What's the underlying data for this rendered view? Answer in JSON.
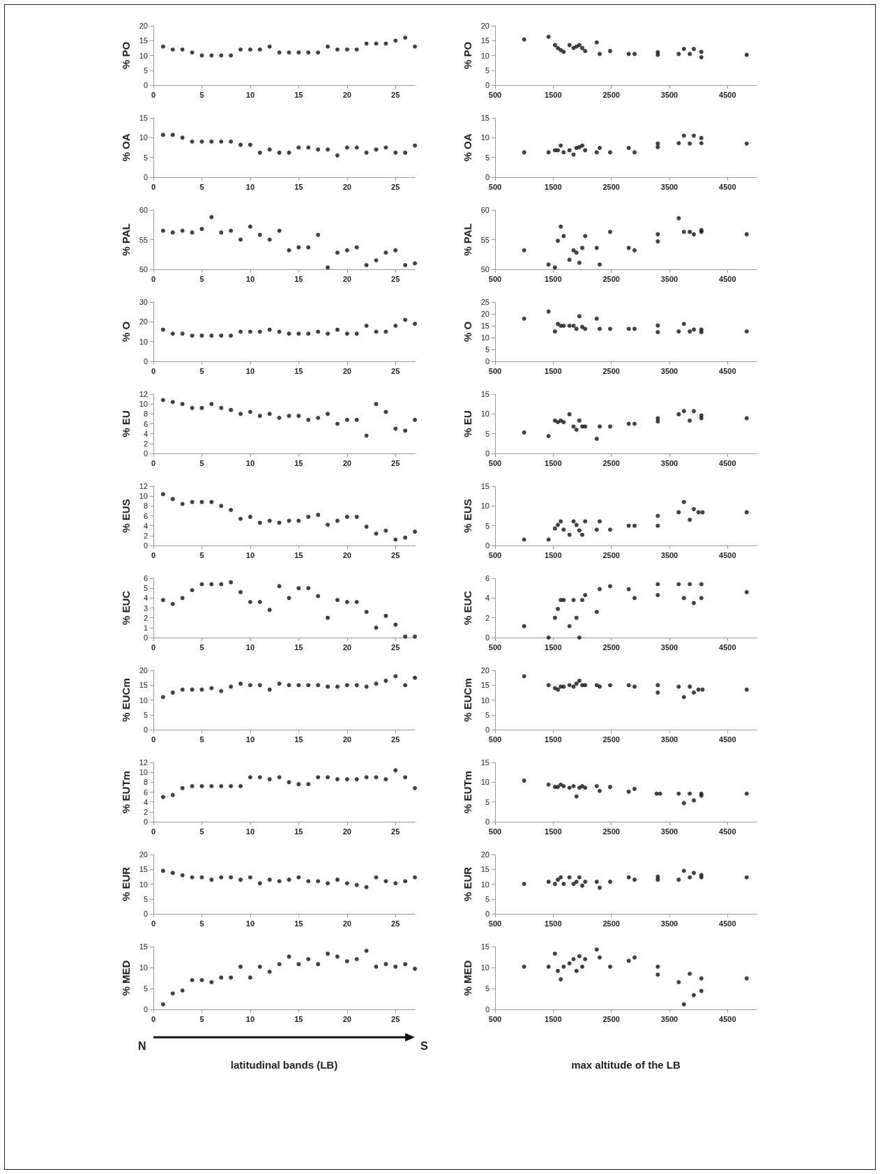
{
  "chart_data": [
    {
      "type": "scatter",
      "ylabel": "% PO",
      "x": [
        1,
        2,
        3,
        4,
        5,
        6,
        7,
        8,
        9,
        10,
        11,
        12,
        13,
        14,
        15,
        16,
        17,
        18,
        19,
        20,
        21,
        22,
        23,
        24,
        25,
        26,
        27
      ],
      "values": [
        13,
        12,
        12,
        11,
        10,
        10,
        10,
        10,
        12,
        12,
        12,
        13,
        11,
        11,
        11,
        11,
        11,
        13,
        12,
        12,
        12,
        14,
        14,
        14,
        15,
        16,
        13
      ],
      "color": "#111111",
      "marker": "circle",
      "xlim": [
        0,
        27
      ],
      "xticks": [
        0,
        5,
        10,
        15,
        20,
        25
      ],
      "ylim": [
        0,
        20
      ],
      "yticks": [
        0,
        5,
        10,
        15,
        20
      ]
    },
    {
      "type": "scatter",
      "ylabel": "% PO",
      "x": [
        1000,
        1420,
        1530,
        1580,
        1630,
        1680,
        1780,
        1850,
        1900,
        1950,
        2000,
        2050,
        2250,
        2300,
        2480,
        2800,
        2900,
        3300,
        3300,
        3660,
        3750,
        3850,
        3920,
        4050,
        4050,
        4830
      ],
      "values": [
        15.4,
        16.3,
        13.5,
        12.5,
        11.8,
        11.2,
        13.5,
        12.5,
        13,
        13.5,
        12.5,
        11.5,
        14.4,
        10.5,
        11.5,
        10.5,
        10.5,
        11.1,
        10.2,
        10.5,
        12.2,
        10.5,
        12.2,
        11.2,
        9.4,
        10.2
      ],
      "color": "#111111",
      "marker": "circle",
      "xlim": [
        500,
        5000
      ],
      "xticks": [
        500,
        1500,
        2500,
        3500,
        4500
      ],
      "ylim": [
        0,
        20
      ],
      "yticks": [
        0,
        5,
        10,
        15,
        20
      ]
    },
    {
      "type": "scatter",
      "ylabel": "% OA",
      "x": [
        1,
        2,
        3,
        4,
        5,
        6,
        7,
        8,
        9,
        10,
        11,
        12,
        13,
        14,
        15,
        16,
        17,
        18,
        19,
        20,
        21,
        22,
        23,
        24,
        25,
        26,
        27
      ],
      "values": [
        10.7,
        10.7,
        10,
        9,
        9,
        9,
        9,
        9,
        8.2,
        8.2,
        6.2,
        7,
        6.2,
        6.2,
        7.5,
        7.5,
        7,
        7,
        5.5,
        7.5,
        7.5,
        6.2,
        7,
        7.5,
        6.2,
        6.2,
        8
      ],
      "color": "#111111",
      "marker": "circle",
      "xlim": [
        0,
        27
      ],
      "xticks": [
        0,
        5,
        10,
        15,
        20,
        25
      ],
      "ylim": [
        0,
        15
      ],
      "yticks": [
        0,
        5,
        10,
        15
      ]
    },
    {
      "type": "scatter",
      "ylabel": "% OA",
      "x": [
        1000,
        1420,
        1530,
        1580,
        1630,
        1680,
        1780,
        1850,
        1900,
        1950,
        2000,
        2050,
        2250,
        2300,
        2480,
        2800,
        2900,
        3300,
        3300,
        3660,
        3750,
        3850,
        3920,
        4050,
        4050,
        4830
      ],
      "values": [
        6.3,
        6.3,
        6.8,
        6.8,
        8,
        6.3,
        6.8,
        5.7,
        7.4,
        7.6,
        8,
        6.8,
        6.3,
        7.4,
        6.3,
        7.4,
        6.3,
        8.5,
        7.6,
        8.6,
        10.5,
        8.5,
        10.5,
        9.9,
        8.6,
        8.5
      ],
      "color": "#111111",
      "marker": "circle",
      "xlim": [
        500,
        5000
      ],
      "xticks": [
        500,
        1500,
        2500,
        3500,
        4500
      ],
      "ylim": [
        0,
        15
      ],
      "yticks": [
        0,
        5,
        10,
        15
      ]
    },
    {
      "type": "scatter",
      "ylabel": "% PAL",
      "x": [
        1,
        2,
        3,
        4,
        5,
        6,
        7,
        8,
        9,
        10,
        11,
        12,
        13,
        14,
        15,
        16,
        17,
        18,
        19,
        20,
        21,
        22,
        23,
        24,
        25,
        26,
        27
      ],
      "values": [
        56.5,
        56.2,
        56.5,
        56.2,
        56.8,
        58.8,
        56.2,
        56.5,
        55,
        57.2,
        55.8,
        55,
        56.5,
        53.2,
        53.7,
        53.7,
        55.8,
        50.3,
        52.8,
        53.2,
        53.7,
        50.7,
        51.5,
        52.8,
        53.2,
        50.7,
        51
      ],
      "color": "#111111",
      "marker": "circle",
      "xlim": [
        0,
        27
      ],
      "xticks": [
        0,
        5,
        10,
        15,
        20,
        25
      ],
      "ylim": [
        50,
        60
      ],
      "yticks": [
        50,
        55,
        60
      ]
    },
    {
      "type": "scatter",
      "ylabel": "% PAL",
      "x": [
        1000,
        1420,
        1530,
        1580,
        1630,
        1680,
        1780,
        1850,
        1900,
        1950,
        2000,
        2050,
        2250,
        2300,
        2480,
        2800,
        2900,
        3300,
        3300,
        3660,
        3750,
        3850,
        3920,
        4050,
        4050,
        4830
      ],
      "values": [
        53.2,
        50.8,
        50.3,
        54.8,
        57.2,
        55.6,
        51.6,
        53.2,
        52.8,
        51.1,
        53.6,
        55.6,
        53.6,
        50.8,
        56.3,
        53.6,
        53.2,
        55.9,
        54.7,
        58.6,
        56.3,
        56.3,
        55.9,
        56.6,
        56.3,
        55.9
      ],
      "color": "#111111",
      "marker": "circle",
      "xlim": [
        500,
        5000
      ],
      "xticks": [
        500,
        1500,
        2500,
        3500,
        4500
      ],
      "ylim": [
        50,
        60
      ],
      "yticks": [
        50,
        55,
        60
      ]
    },
    {
      "type": "scatter",
      "ylabel": "% O",
      "x": [
        1,
        2,
        3,
        4,
        5,
        6,
        7,
        8,
        9,
        10,
        11,
        12,
        13,
        14,
        15,
        16,
        17,
        18,
        19,
        20,
        21,
        22,
        23,
        24,
        25,
        26,
        27
      ],
      "values": [
        16,
        14,
        14,
        13,
        13,
        13,
        13,
        13,
        15,
        15,
        15,
        16,
        15,
        14,
        14,
        14,
        15,
        14,
        16,
        14,
        14,
        18,
        15,
        15,
        18,
        21,
        19
      ],
      "color": "#111111",
      "marker": "circle",
      "xlim": [
        0,
        27
      ],
      "xticks": [
        0,
        5,
        10,
        15,
        20,
        25
      ],
      "ylim": [
        0,
        30
      ],
      "yticks": [
        0,
        10,
        20,
        30
      ]
    },
    {
      "type": "scatter",
      "ylabel": "% O",
      "x": [
        1000,
        1420,
        1530,
        1580,
        1630,
        1680,
        1780,
        1850,
        1900,
        1950,
        2000,
        2050,
        2250,
        2300,
        2480,
        2800,
        2900,
        3300,
        3300,
        3660,
        3750,
        3850,
        3920,
        4050,
        4050,
        4830
      ],
      "values": [
        18,
        21,
        12.6,
        15.8,
        15,
        15,
        15,
        15,
        13.7,
        19,
        14.5,
        13.7,
        18,
        13.7,
        13.7,
        13.7,
        13.7,
        15.1,
        12.3,
        12.6,
        15.8,
        12.6,
        13.4,
        13.4,
        12.3,
        12.6
      ],
      "color": "#111111",
      "marker": "circle",
      "xlim": [
        500,
        5000
      ],
      "xticks": [
        500,
        1500,
        2500,
        3500,
        4500
      ],
      "ylim": [
        0,
        25
      ],
      "yticks": [
        0,
        5,
        10,
        15,
        20,
        25
      ]
    },
    {
      "type": "scatter",
      "ylabel": "% EU",
      "x": [
        1,
        2,
        3,
        4,
        5,
        6,
        7,
        8,
        9,
        10,
        11,
        12,
        13,
        14,
        15,
        16,
        17,
        18,
        19,
        20,
        21,
        22,
        23,
        24,
        25,
        26,
        27
      ],
      "values": [
        10.8,
        10.4,
        10,
        9.2,
        9.2,
        10,
        9.2,
        8.8,
        8,
        8.4,
        7.6,
        8,
        7.2,
        7.6,
        7.6,
        6.8,
        7.2,
        8,
        6,
        6.8,
        6.8,
        3.6,
        10,
        8.4,
        5,
        4.6,
        6.8
      ],
      "color": "#111111",
      "marker": "circle",
      "xlim": [
        0,
        27
      ],
      "xticks": [
        0,
        5,
        10,
        15,
        20,
        25
      ],
      "ylim": [
        0,
        12
      ],
      "yticks": [
        0,
        2,
        4,
        6,
        8,
        10,
        12
      ]
    },
    {
      "type": "scatter",
      "ylabel": "% EU",
      "x": [
        1000,
        1420,
        1530,
        1580,
        1630,
        1680,
        1780,
        1850,
        1900,
        1950,
        2000,
        2050,
        2250,
        2300,
        2480,
        2800,
        2900,
        3300,
        3300,
        3660,
        3750,
        3850,
        3920,
        4050,
        4050,
        4830
      ],
      "values": [
        5.3,
        4.4,
        8.3,
        7.9,
        8.3,
        7.9,
        9.9,
        6.8,
        6,
        8.3,
        6.8,
        6.8,
        3.7,
        6.8,
        6.8,
        7.5,
        7.5,
        8.9,
        8.1,
        9.9,
        10.7,
        8.3,
        10.7,
        9.6,
        8.9,
        8.9
      ],
      "color": "#111111",
      "marker": "circle",
      "xlim": [
        500,
        5000
      ],
      "xticks": [
        500,
        1500,
        2500,
        3500,
        4500
      ],
      "ylim": [
        0,
        15
      ],
      "yticks": [
        0,
        5,
        10,
        15
      ]
    },
    {
      "type": "scatter",
      "ylabel": "% EUS",
      "x": [
        1,
        2,
        3,
        4,
        5,
        6,
        7,
        8,
        9,
        10,
        11,
        12,
        13,
        14,
        15,
        16,
        17,
        18,
        19,
        20,
        21,
        22,
        23,
        24,
        25,
        26,
        27
      ],
      "values": [
        10.4,
        9.4,
        8.4,
        8.8,
        8.8,
        8.8,
        8,
        7.2,
        5.4,
        5.8,
        4.6,
        5,
        4.6,
        5,
        5,
        5.8,
        6.2,
        4.2,
        5,
        5.8,
        5.8,
        3.8,
        2.4,
        3,
        1.2,
        1.6,
        2.8
      ],
      "color": "#111111",
      "marker": "circle",
      "xlim": [
        0,
        27
      ],
      "xticks": [
        0,
        5,
        10,
        15,
        20,
        25
      ],
      "ylim": [
        0,
        12
      ],
      "yticks": [
        0,
        2,
        4,
        6,
        8,
        10,
        12
      ]
    },
    {
      "type": "scatter",
      "ylabel": "% EUS",
      "x": [
        1000,
        1420,
        1530,
        1580,
        1630,
        1680,
        1780,
        1850,
        1900,
        1950,
        2000,
        2050,
        2250,
        2300,
        2480,
        2800,
        2900,
        3300,
        3300,
        3660,
        3750,
        3850,
        3920,
        4000,
        4070,
        4830
      ],
      "values": [
        1.5,
        1.5,
        4.3,
        5.2,
        6.1,
        4,
        2.7,
        6.1,
        5.2,
        3.8,
        2.7,
        6.1,
        4,
        6.1,
        4,
        5,
        5,
        7.5,
        5,
        8.4,
        11,
        6.5,
        9.2,
        8.4,
        8.4,
        8.4
      ],
      "color": "#111111",
      "marker": "circle",
      "xlim": [
        500,
        5000
      ],
      "xticks": [
        500,
        1500,
        2500,
        3500,
        4500
      ],
      "ylim": [
        0,
        15
      ],
      "yticks": [
        0,
        5,
        10,
        15
      ]
    },
    {
      "type": "scatter",
      "ylabel": "% EUC",
      "x": [
        1,
        2,
        3,
        4,
        5,
        6,
        7,
        8,
        9,
        10,
        11,
        12,
        13,
        14,
        15,
        16,
        17,
        18,
        19,
        20,
        21,
        22,
        23,
        24,
        25,
        26,
        27
      ],
      "values": [
        3.8,
        3.4,
        4,
        4.8,
        5.4,
        5.4,
        5.4,
        5.6,
        4.6,
        3.6,
        3.6,
        2.8,
        5.2,
        4,
        5,
        5,
        4.2,
        2,
        3.8,
        3.6,
        3.6,
        2.6,
        1,
        2.2,
        1.3,
        0.1,
        0.1
      ],
      "color": "#111111",
      "marker": "circle",
      "xlim": [
        0,
        27
      ],
      "xticks": [
        0,
        5,
        10,
        15,
        20,
        25
      ],
      "ylim": [
        0,
        6
      ],
      "yticks": [
        0,
        1,
        2,
        3,
        4,
        5,
        6
      ]
    },
    {
      "type": "scatter",
      "ylabel": "% EUC",
      "x": [
        1000,
        1420,
        1530,
        1580,
        1630,
        1680,
        1780,
        1850,
        1900,
        1950,
        2000,
        2050,
        2250,
        2300,
        2480,
        2800,
        2900,
        3300,
        3300,
        3660,
        3750,
        3850,
        3920,
        4050,
        4050,
        4830
      ],
      "values": [
        1.15,
        0,
        2,
        2.9,
        3.8,
        3.8,
        1.15,
        3.8,
        2,
        0,
        3.8,
        4.3,
        2.6,
        4.9,
        5.2,
        4.9,
        4,
        5.4,
        4.3,
        5.4,
        4,
        5.4,
        3.5,
        5.4,
        4,
        4.6
      ],
      "color": "#111111",
      "marker": "circle",
      "xlim": [
        500,
        5000
      ],
      "xticks": [
        500,
        1500,
        2500,
        3500,
        4500
      ],
      "ylim": [
        0,
        6
      ],
      "yticks": [
        0,
        2,
        4,
        6
      ]
    },
    {
      "type": "scatter",
      "ylabel": "% EUCm",
      "x": [
        1,
        2,
        3,
        4,
        5,
        6,
        7,
        8,
        9,
        10,
        11,
        12,
        13,
        14,
        15,
        16,
        17,
        18,
        19,
        20,
        21,
        22,
        23,
        24,
        25,
        26,
        27
      ],
      "values": [
        11,
        12.5,
        13.5,
        13.5,
        13.5,
        14,
        13,
        14.5,
        15.5,
        15,
        15,
        13.5,
        15.5,
        15,
        15,
        15,
        15,
        14.5,
        14.5,
        15,
        15,
        14.5,
        15.5,
        16.5,
        18,
        15,
        17.5
      ],
      "color": "#111111",
      "marker": "circle",
      "xlim": [
        0,
        27
      ],
      "xticks": [
        0,
        5,
        10,
        15,
        20,
        25
      ],
      "ylim": [
        0,
        20
      ],
      "yticks": [
        0,
        5,
        10,
        15,
        20
      ]
    },
    {
      "type": "scatter",
      "ylabel": "% EUCm",
      "x": [
        1000,
        1420,
        1530,
        1580,
        1630,
        1680,
        1780,
        1850,
        1900,
        1950,
        2000,
        2050,
        2250,
        2300,
        2480,
        2800,
        2900,
        3300,
        3300,
        3660,
        3750,
        3850,
        3920,
        4000,
        4070,
        4830
      ],
      "values": [
        18,
        15,
        14,
        13.5,
        14.5,
        14.5,
        15,
        14.5,
        15.5,
        16.5,
        15,
        15,
        15,
        14.5,
        15,
        15,
        14.5,
        15,
        12.5,
        14.5,
        11,
        14.5,
        12.5,
        13.5,
        13.5,
        13.5
      ],
      "color": "#111111",
      "marker": "circle",
      "xlim": [
        500,
        5000
      ],
      "xticks": [
        500,
        1500,
        2500,
        3500,
        4500
      ],
      "ylim": [
        0,
        20
      ],
      "yticks": [
        0,
        5,
        10,
        15,
        20
      ]
    },
    {
      "type": "scatter",
      "ylabel": "% EUTm",
      "x": [
        1,
        2,
        3,
        4,
        5,
        6,
        7,
        8,
        9,
        10,
        11,
        12,
        13,
        14,
        15,
        16,
        17,
        18,
        19,
        20,
        21,
        22,
        23,
        24,
        25,
        26,
        27
      ],
      "values": [
        5,
        5.4,
        6.8,
        7.2,
        7.2,
        7.2,
        7.2,
        7.2,
        7.2,
        9,
        9,
        8.6,
        9,
        8,
        7.6,
        7.6,
        9,
        9,
        8.6,
        8.6,
        8.6,
        9,
        9,
        8.6,
        10.4,
        9,
        6.8
      ],
      "color": "#111111",
      "marker": "circle",
      "xlim": [
        0,
        27
      ],
      "xticks": [
        0,
        5,
        10,
        15,
        20,
        25
      ],
      "ylim": [
        0,
        12
      ],
      "yticks": [
        0,
        2,
        4,
        6,
        8,
        10,
        12
      ]
    },
    {
      "type": "scatter",
      "ylabel": "% EUTm",
      "x": [
        1000,
        1420,
        1530,
        1580,
        1630,
        1680,
        1780,
        1850,
        1900,
        1950,
        2000,
        2050,
        2250,
        2300,
        2480,
        2800,
        2900,
        3280,
        3340,
        3660,
        3750,
        3850,
        3920,
        4050,
        4050,
        4830
      ],
      "values": [
        10.4,
        9.4,
        8.8,
        8.8,
        9.4,
        9,
        8.6,
        9,
        6.4,
        8.6,
        9,
        8.6,
        9,
        7.8,
        8.8,
        7.6,
        8.3,
        7.1,
        7.1,
        7.1,
        4.7,
        7.1,
        5.4,
        7.1,
        6.6,
        7.1
      ],
      "color": "#111111",
      "marker": "circle",
      "xlim": [
        500,
        5000
      ],
      "xticks": [
        500,
        1500,
        2500,
        3500,
        4500
      ],
      "ylim": [
        0,
        15
      ],
      "yticks": [
        0,
        5,
        10,
        15
      ]
    },
    {
      "type": "scatter",
      "ylabel": "% EUR",
      "x": [
        1,
        2,
        3,
        4,
        5,
        6,
        7,
        8,
        9,
        10,
        11,
        12,
        13,
        14,
        15,
        16,
        17,
        18,
        19,
        20,
        21,
        22,
        23,
        24,
        25,
        26,
        27
      ],
      "values": [
        14.5,
        13.8,
        13,
        12.3,
        12.3,
        11.5,
        12.3,
        12.3,
        11.5,
        12.3,
        10.3,
        11.5,
        11,
        11.5,
        12.3,
        11,
        11,
        10.3,
        11.5,
        10.3,
        9.7,
        9,
        12.3,
        11,
        10.3,
        11,
        12.3
      ],
      "color": "#111111",
      "marker": "circle",
      "xlim": [
        0,
        27
      ],
      "xticks": [
        0,
        5,
        10,
        15,
        20,
        25
      ],
      "ylim": [
        0,
        20
      ],
      "yticks": [
        0,
        5,
        10,
        15,
        20
      ]
    },
    {
      "type": "scatter",
      "ylabel": "% EUR",
      "x": [
        1000,
        1420,
        1530,
        1580,
        1630,
        1680,
        1780,
        1850,
        1900,
        1950,
        2000,
        2050,
        2250,
        2300,
        2480,
        2800,
        2900,
        3300,
        3300,
        3660,
        3750,
        3850,
        3920,
        4050,
        4050,
        4830
      ],
      "values": [
        10.1,
        10.8,
        10.1,
        11.5,
        12.3,
        10.1,
        12.3,
        10.1,
        10.8,
        12.3,
        9.5,
        10.8,
        10.8,
        8.8,
        10.8,
        12.3,
        11.5,
        12.5,
        11.5,
        11.5,
        14.5,
        12.3,
        13.8,
        13.1,
        12.3,
        12.3
      ],
      "color": "#111111",
      "marker": "circle",
      "xlim": [
        500,
        5000
      ],
      "xticks": [
        500,
        1500,
        2500,
        3500,
        4500
      ],
      "ylim": [
        0,
        20
      ],
      "yticks": [
        0,
        5,
        10,
        15,
        20
      ]
    },
    {
      "type": "scatter",
      "ylabel": "% MED",
      "xlabel": "latitudinal bands (LB)",
      "annotations": [
        "N",
        "S"
      ],
      "x": [
        1,
        2,
        3,
        4,
        5,
        6,
        7,
        8,
        9,
        10,
        11,
        12,
        13,
        14,
        15,
        16,
        17,
        18,
        19,
        20,
        21,
        22,
        23,
        24,
        25,
        26,
        27
      ],
      "values": [
        1.2,
        3.8,
        4.5,
        7,
        7,
        6.5,
        7.6,
        7.6,
        10.2,
        7.6,
        10.2,
        9,
        10.8,
        12.6,
        10.8,
        12,
        10.8,
        13.3,
        12.6,
        11.5,
        12,
        14,
        10.2,
        10.8,
        10.2,
        10.8,
        9.7
      ],
      "color": "#111111",
      "marker": "circle",
      "xlim": [
        0,
        27
      ],
      "xticks": [
        0,
        5,
        10,
        15,
        20,
        25
      ],
      "ylim": [
        0,
        15
      ],
      "yticks": [
        0,
        5,
        10,
        15
      ]
    },
    {
      "type": "scatter",
      "ylabel": "% MED",
      "xlabel": "max altitude of the LB",
      "x": [
        1000,
        1420,
        1530,
        1580,
        1630,
        1680,
        1780,
        1850,
        1900,
        1950,
        2000,
        2050,
        2250,
        2300,
        2480,
        2800,
        2900,
        3300,
        3300,
        3660,
        3750,
        3850,
        3920,
        4050,
        4050,
        4830
      ],
      "values": [
        10.2,
        10.2,
        13.3,
        9.2,
        7.2,
        10.2,
        11,
        12,
        9.2,
        12.7,
        10.2,
        12,
        14.3,
        12.4,
        10.2,
        11.6,
        12.4,
        10.2,
        8.3,
        6.5,
        1.2,
        8.5,
        3.4,
        4.4,
        7.4,
        7.4
      ],
      "color": "#111111",
      "marker": "circle",
      "xlim": [
        500,
        5000
      ],
      "xticks": [
        500,
        1500,
        2500,
        3500,
        4500
      ],
      "ylim": [
        0,
        15
      ],
      "yticks": [
        0,
        5,
        10,
        15
      ]
    }
  ]
}
